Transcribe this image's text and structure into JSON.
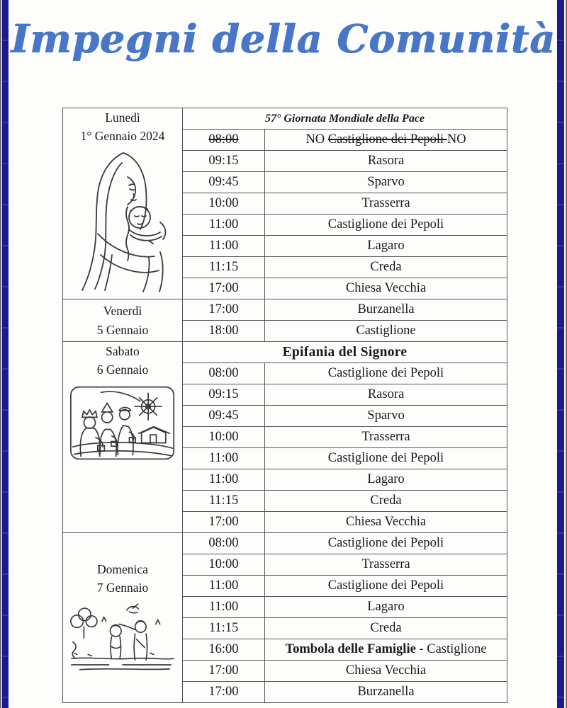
{
  "page": {
    "title": "Impegni della Comunità"
  },
  "colors": {
    "title_blue": "#4777c6",
    "sidebar_navy": "#1b1b8e",
    "table_border": "#555555"
  },
  "schedule": {
    "sections": [
      {
        "day_lines": [
          "Lunedì",
          "1° Gennaio 2024"
        ],
        "image": "madonna-and-child",
        "rows": [
          {
            "type": "header",
            "style": "bold-italic",
            "text": "57° Giornata Mondiale della Pace"
          },
          {
            "time": "08:00",
            "time_strike": true,
            "place_parts": [
              {
                "text": "NO "
              },
              {
                "text": "Castiglione dei Pepoli ",
                "strike": true
              },
              {
                "text": "NO"
              }
            ]
          },
          {
            "time": "09:15",
            "place_parts": [
              {
                "text": "Rasora"
              }
            ]
          },
          {
            "time": "09:45",
            "place_parts": [
              {
                "text": "Sparvo"
              }
            ]
          },
          {
            "time": "10:00",
            "place_parts": [
              {
                "text": "Trasserra"
              }
            ]
          },
          {
            "time": "11:00",
            "place_parts": [
              {
                "text": "Castiglione dei Pepoli"
              }
            ]
          },
          {
            "time": "11:00",
            "place_parts": [
              {
                "text": "Lagaro"
              }
            ]
          },
          {
            "time": "11:15",
            "place_parts": [
              {
                "text": "Creda"
              }
            ]
          },
          {
            "time": "17:00",
            "place_parts": [
              {
                "text": "Chiesa Vecchia"
              }
            ]
          }
        ]
      },
      {
        "day_lines": [
          "Venerdì",
          "5 Gennaio"
        ],
        "image": null,
        "rows": [
          {
            "time": "17:00",
            "place_parts": [
              {
                "text": "Burzanella"
              }
            ]
          },
          {
            "time": "18:00",
            "place_parts": [
              {
                "text": "Castiglione"
              }
            ]
          }
        ]
      },
      {
        "day_lines": [
          "Sabato",
          "6 Gennaio"
        ],
        "image": "three-magi-with-star",
        "rows": [
          {
            "type": "header",
            "style": "bold",
            "text": "Epifania del Signore"
          },
          {
            "time": "08:00",
            "place_parts": [
              {
                "text": "Castiglione dei Pepoli"
              }
            ]
          },
          {
            "time": "09:15",
            "place_parts": [
              {
                "text": "Rasora"
              }
            ]
          },
          {
            "time": "09:45",
            "place_parts": [
              {
                "text": "Sparvo"
              }
            ]
          },
          {
            "time": "10:00",
            "place_parts": [
              {
                "text": "Trasserra"
              }
            ]
          },
          {
            "time": "11:00",
            "place_parts": [
              {
                "text": "Castiglione dei Pepoli"
              }
            ]
          },
          {
            "time": "11:00",
            "place_parts": [
              {
                "text": "Lagaro"
              }
            ]
          },
          {
            "time": "11:15",
            "place_parts": [
              {
                "text": "Creda"
              }
            ]
          },
          {
            "time": "17:00",
            "place_parts": [
              {
                "text": "Chiesa Vecchia"
              }
            ]
          }
        ]
      },
      {
        "day_lines": [
          "Domenica",
          "7 Gennaio"
        ],
        "image": "baptism-of-jesus",
        "rows": [
          {
            "time": "08:00",
            "place_parts": [
              {
                "text": "Castiglione dei Pepoli"
              }
            ]
          },
          {
            "time": "10:00",
            "place_parts": [
              {
                "text": "Trasserra"
              }
            ]
          },
          {
            "time": "11:00",
            "place_parts": [
              {
                "text": "Castiglione dei Pepoli"
              }
            ]
          },
          {
            "time": "11:00",
            "place_parts": [
              {
                "text": "Lagaro"
              }
            ]
          },
          {
            "time": "11:15",
            "place_parts": [
              {
                "text": "Creda"
              }
            ]
          },
          {
            "time": "16:00",
            "place_parts": [
              {
                "text": "Tombola delle Famiglie",
                "bold": true
              },
              {
                "text": " - Castiglione"
              }
            ]
          },
          {
            "time": "17:00",
            "place_parts": [
              {
                "text": "Chiesa Vecchia"
              }
            ]
          },
          {
            "time": "17:00",
            "place_parts": [
              {
                "text": "Burzanella"
              }
            ]
          }
        ]
      }
    ]
  }
}
